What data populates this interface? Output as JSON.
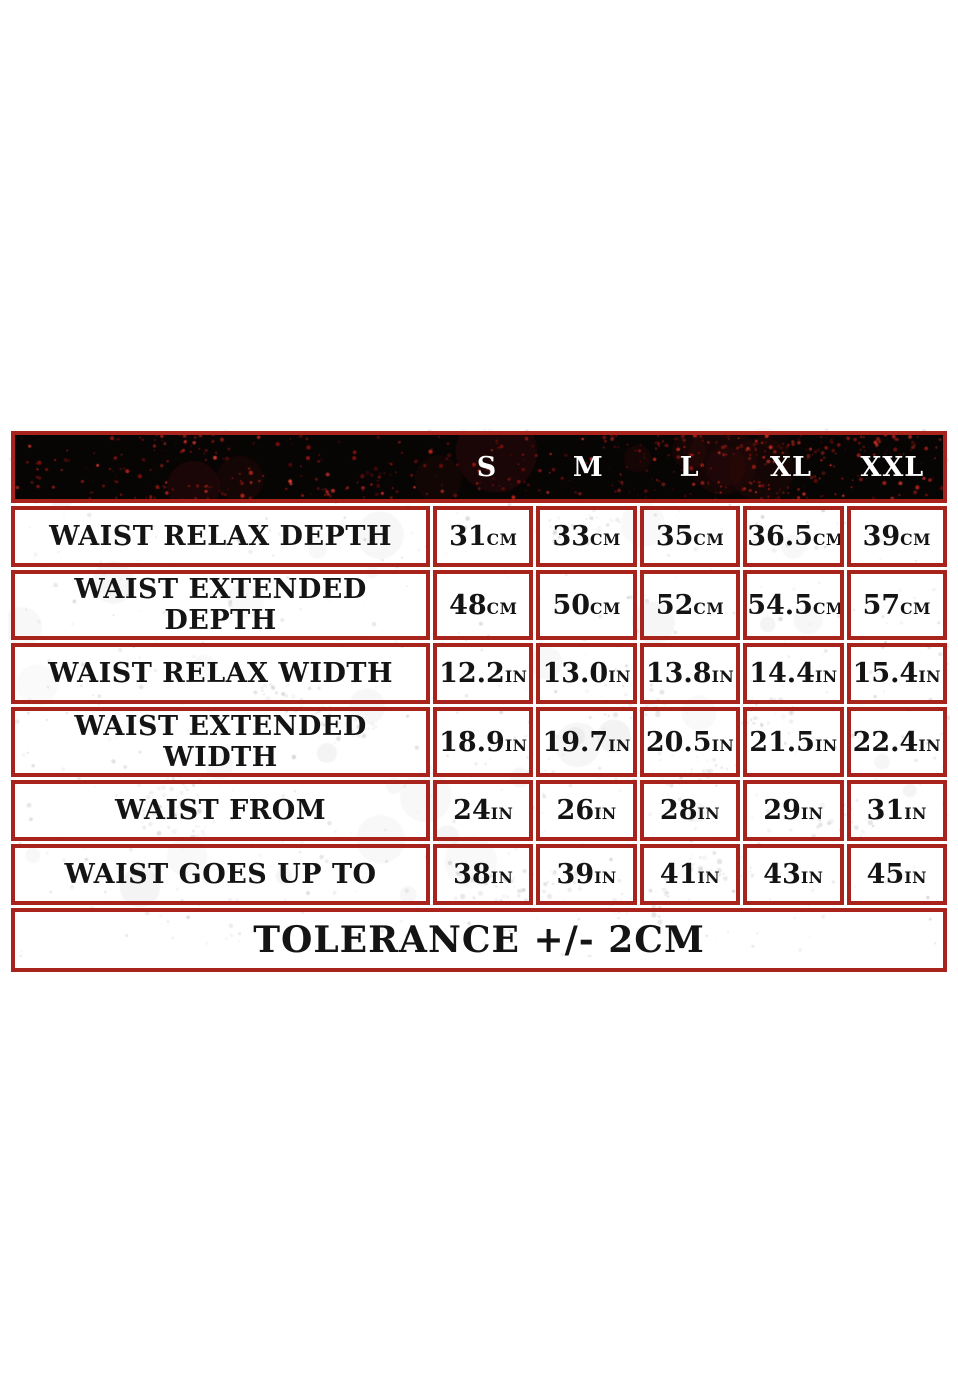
{
  "colors": {
    "border_red": "#a8231b",
    "header_bg": "#070404",
    "header_text": "#ffffff",
    "body_text": "#141414",
    "page_bg": "#ffffff"
  },
  "table": {
    "header_sizes": [
      "S",
      "M",
      "L",
      "XL",
      "XXL"
    ],
    "rows": [
      {
        "label": "WAIST RELAX DEPTH",
        "unit": "CM",
        "values": [
          "31",
          "33",
          "35",
          "36.5",
          "39"
        ]
      },
      {
        "label": "WAIST EXTENDED DEPTH",
        "unit": "CM",
        "values": [
          "48",
          "50",
          "52",
          "54.5",
          "57"
        ]
      },
      {
        "label": "WAIST RELAX WIDTH",
        "unit": "IN",
        "values": [
          "12.2",
          "13.0",
          "13.8",
          "14.4",
          "15.4"
        ]
      },
      {
        "label": "WAIST EXTENDED WIDTH",
        "unit": "IN",
        "values": [
          "18.9",
          "19.7",
          "20.5",
          "21.5",
          "22.4"
        ]
      },
      {
        "label": "WAIST FROM",
        "unit": "IN",
        "values": [
          "24",
          "26",
          "28",
          "29",
          "31"
        ]
      },
      {
        "label": "WAIST GOES UP TO",
        "unit": "IN",
        "values": [
          "38",
          "39",
          "41",
          "43",
          "45"
        ]
      }
    ],
    "footer": "TOLERANCE +/- 2CM"
  },
  "chart_data": {
    "type": "table",
    "columns": [
      "",
      "S",
      "M",
      "L",
      "XL",
      "XXL"
    ],
    "rows": [
      [
        "WAIST RELAX DEPTH",
        "31CM",
        "33CM",
        "35CM",
        "36.5CM",
        "39CM"
      ],
      [
        "WAIST EXTENDED DEPTH",
        "48CM",
        "50CM",
        "52CM",
        "54.5CM",
        "57CM"
      ],
      [
        "WAIST RELAX WIDTH",
        "12.2IN",
        "13.0IN",
        "13.8IN",
        "14.4IN",
        "15.4IN"
      ],
      [
        "WAIST EXTENDED WIDTH",
        "18.9IN",
        "19.7IN",
        "20.5IN",
        "21.5IN",
        "22.4IN"
      ],
      [
        "WAIST FROM",
        "24IN",
        "26IN",
        "28IN",
        "29IN",
        "31IN"
      ],
      [
        "WAIST GOES UP TO",
        "38IN",
        "39IN",
        "41IN",
        "43IN",
        "45IN"
      ]
    ],
    "footer": "TOLERANCE +/- 2CM"
  }
}
